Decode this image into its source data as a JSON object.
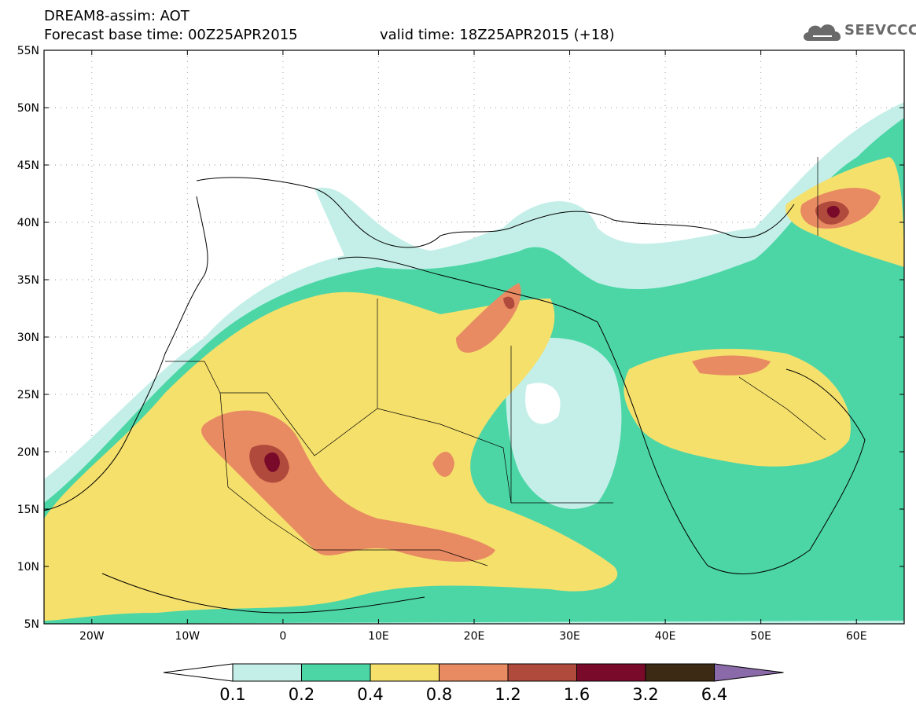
{
  "header": {
    "title_line1": "DREAM8-assim: AOT",
    "title_line2": "Forecast base time: 00Z25APR2015",
    "valid_time": "valid time: 18Z25APR2015 (+18)",
    "logo_text": "SEEVCCC",
    "logo_icon": "cloud-icon"
  },
  "map": {
    "lat_labels": [
      "55N",
      "50N",
      "45N",
      "40N",
      "35N",
      "30N",
      "25N",
      "20N",
      "15N",
      "10N",
      "5N"
    ],
    "lon_labels": [
      "20W",
      "10W",
      "0",
      "10E",
      "20E",
      "30E",
      "40E",
      "50E",
      "60E"
    ],
    "lon_range": [
      -25,
      65
    ],
    "lat_range": [
      5,
      55
    ]
  },
  "legend": {
    "levels": [
      "0.1",
      "0.2",
      "0.4",
      "0.8",
      "1.2",
      "1.6",
      "3.2",
      "6.4"
    ],
    "colors": [
      "#ffffff",
      "#c4efe8",
      "#4cd6a6",
      "#f5e06c",
      "#e88a62",
      "#b04a3c",
      "#7a0a2a",
      "#3d2a14",
      "#8a6aa8"
    ]
  },
  "colors": {
    "aot_0_1": "#c4efe8",
    "aot_0_2": "#4cd6a6",
    "aot_0_4": "#f5e06c",
    "aot_0_8": "#e88a62",
    "aot_1_2": "#b04a3c",
    "aot_1_6": "#7a0a2a"
  }
}
